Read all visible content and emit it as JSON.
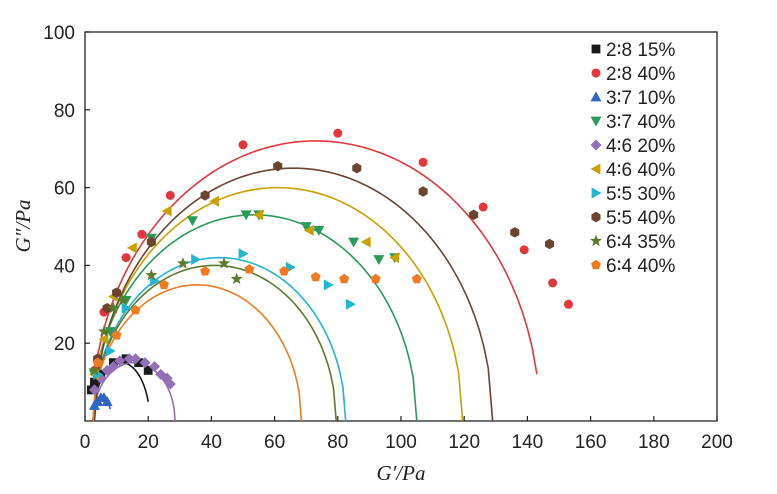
{
  "chart_data": {
    "type": "scatter",
    "xlabel": "G′/Pa",
    "ylabel": "G″/Pa",
    "xlim": [
      0,
      200
    ],
    "ylim": [
      0,
      100
    ],
    "x_ticks": [
      0,
      20,
      40,
      60,
      80,
      100,
      120,
      140,
      160,
      180,
      200
    ],
    "y_ticks": [
      20,
      40,
      60,
      80,
      100
    ],
    "grid": false,
    "legend_position": "top-right, inside",
    "series": [
      {
        "name": "2∶8  15%",
        "color": "#1a1a1a",
        "marker": "square",
        "points": [
          [
            2,
            8
          ],
          [
            3,
            10
          ],
          [
            5,
            12
          ],
          [
            9,
            15
          ],
          [
            13,
            16
          ],
          [
            17,
            15
          ],
          [
            20,
            13
          ]
        ],
        "fit": {
          "center": 11.5,
          "radius": 9,
          "height": 15,
          "x_start": 3,
          "x_end": 20
        }
      },
      {
        "name": "2∶8  40%",
        "color": "#e0363c",
        "marker": "circle",
        "points": [
          [
            3,
            13
          ],
          [
            6,
            28
          ],
          [
            13,
            42
          ],
          [
            18,
            48
          ],
          [
            27,
            58
          ],
          [
            50,
            71
          ],
          [
            80,
            74
          ],
          [
            107,
            66.5
          ],
          [
            126,
            55
          ],
          [
            139,
            44
          ],
          [
            148,
            35.5
          ],
          [
            153,
            30
          ]
        ],
        "fit": {
          "center": 73,
          "radius": 71,
          "height": 72,
          "x_start": 2.5,
          "x_end": 143
        }
      },
      {
        "name": "3∶7  10%",
        "color": "#2f66c0",
        "marker": "triangle-up",
        "points": [
          [
            3,
            4
          ],
          [
            4,
            5
          ],
          [
            5,
            6
          ],
          [
            6,
            6
          ],
          [
            7,
            5
          ]
        ],
        "fit": {
          "center": 5,
          "radius": 3.5,
          "height": 6,
          "x_start": 2,
          "x_end": 8
        }
      },
      {
        "name": "3∶7  40%",
        "color": "#2a9a5a",
        "marker": "triangle-down",
        "points": [
          [
            3,
            12
          ],
          [
            8,
            23
          ],
          [
            13,
            31
          ],
          [
            21,
            47
          ],
          [
            34,
            51.5
          ],
          [
            51,
            53
          ],
          [
            55,
            53
          ],
          [
            70,
            50
          ],
          [
            74,
            49
          ],
          [
            85,
            46
          ],
          [
            93,
            41.5
          ],
          [
            98,
            42
          ]
        ],
        "fit": {
          "center": 53.5,
          "radius": 51.5,
          "height": 53,
          "x_start": 2.5,
          "x_end": 105
        }
      },
      {
        "name": "4∶6  20%",
        "color": "#9370b8",
        "marker": "diamond",
        "points": [
          [
            3,
            8
          ],
          [
            5,
            11
          ],
          [
            7,
            13
          ],
          [
            9,
            14
          ],
          [
            11,
            15.5
          ],
          [
            14,
            16
          ],
          [
            16,
            16
          ],
          [
            19,
            15
          ],
          [
            22,
            14
          ],
          [
            24,
            12
          ],
          [
            26,
            11
          ],
          [
            27,
            9.5
          ]
        ],
        "fit": {
          "center": 15.5,
          "radius": 13,
          "height": 15,
          "x_start": 3,
          "x_end": 28.5
        }
      },
      {
        "name": "4∶6  40%",
        "color": "#c8a000",
        "marker": "triangle-left",
        "points": [
          [
            3,
            12
          ],
          [
            6,
            21
          ],
          [
            9,
            32
          ],
          [
            15,
            44.5
          ],
          [
            26,
            54
          ],
          [
            41,
            56.5
          ],
          [
            55,
            53
          ],
          [
            71,
            49
          ],
          [
            89,
            46
          ],
          [
            98,
            42
          ]
        ],
        "fit": {
          "center": 61,
          "radius": 58.5,
          "height": 60,
          "x_start": 2.5,
          "x_end": 119.5
        }
      },
      {
        "name": "5∶5  30%",
        "color": "#22b6cc",
        "marker": "triangle-right",
        "points": [
          [
            4,
            12
          ],
          [
            8,
            18
          ],
          [
            13,
            29
          ],
          [
            22,
            36
          ],
          [
            35,
            41.5
          ],
          [
            50,
            43
          ],
          [
            65,
            39.5
          ],
          [
            77,
            35
          ],
          [
            84,
            30
          ]
        ],
        "fit": {
          "center": 42.5,
          "radius": 40,
          "height": 42,
          "x_start": 2.5,
          "x_end": 82.5
        }
      },
      {
        "name": "5∶5  40%",
        "color": "#6b4430",
        "marker": "hexagon",
        "points": [
          [
            4,
            16
          ],
          [
            7,
            29
          ],
          [
            10,
            33
          ],
          [
            21,
            46
          ],
          [
            38,
            58
          ],
          [
            61,
            65.5
          ],
          [
            86,
            65
          ],
          [
            107,
            59
          ],
          [
            123,
            53
          ],
          [
            136,
            48.5
          ],
          [
            147,
            45.5
          ]
        ],
        "fit": {
          "center": 66,
          "radius": 63,
          "height": 65,
          "x_start": 3,
          "x_end": 129
        }
      },
      {
        "name": "6∶4  35%",
        "color": "#5c7a2c",
        "marker": "star",
        "points": [
          [
            3,
            13
          ],
          [
            6,
            23
          ],
          [
            9,
            29
          ],
          [
            12,
            31
          ],
          [
            21,
            37.5
          ],
          [
            31,
            40.5
          ],
          [
            44,
            40.5
          ],
          [
            48,
            36.5
          ]
        ],
        "fit": {
          "center": 41,
          "radius": 38.5,
          "height": 40,
          "x_start": 2.5,
          "x_end": 79.5
        }
      },
      {
        "name": "6∶4  40%",
        "color": "#f07a22",
        "marker": "pentagon",
        "points": [
          [
            4,
            15
          ],
          [
            10,
            22
          ],
          [
            16,
            28.5
          ],
          [
            25,
            35
          ],
          [
            38,
            38.5
          ],
          [
            52,
            39
          ],
          [
            63,
            38.5
          ],
          [
            73,
            37
          ],
          [
            82,
            36.5
          ],
          [
            92,
            36.5
          ],
          [
            105,
            36.5
          ]
        ],
        "fit": {
          "center": 35.5,
          "radius": 33,
          "height": 35,
          "x_start": 2.5,
          "x_end": 68.5
        }
      }
    ]
  }
}
